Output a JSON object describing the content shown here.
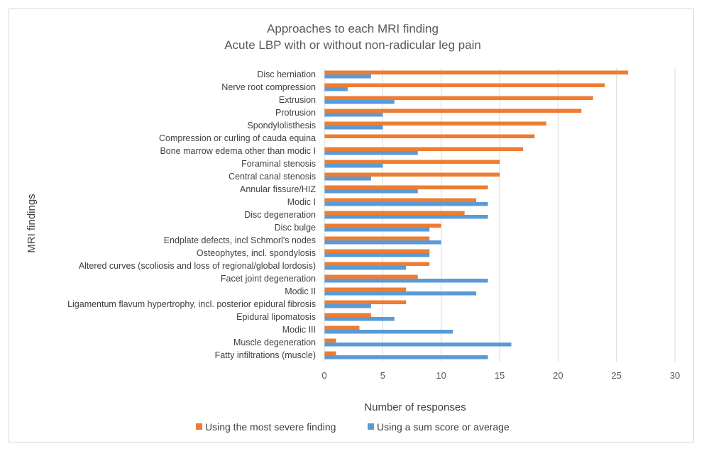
{
  "chart_data": {
    "type": "bar",
    "orientation": "horizontal",
    "title": [
      "Approaches to each MRI finding",
      "Acute LBP with or without non-radicular leg pain"
    ],
    "xlabel": "Number of responses",
    "ylabel": "MRI findings",
    "xlim": [
      0,
      30
    ],
    "xticks": [
      "0",
      "5",
      "10",
      "15",
      "20",
      "25",
      "30"
    ],
    "grid": true,
    "legend_position": "bottom",
    "categories": [
      "Disc herniation",
      "Nerve root compression",
      "Extrusion",
      "Protrusion",
      "Spondylolisthesis",
      "Compression or curling of cauda equina",
      "Bone marrow edema other than modic I",
      "Foraminal stenosis",
      "Central canal stenosis",
      "Annular fissure/HIZ",
      "Modic I",
      "Disc degeneration",
      "Disc bulge",
      "Endplate defects, incl Schmorl's nodes",
      "Osteophytes, incl. spondylosis",
      "Altered curves (scoliosis and loss of regional/global lordosis)",
      "Facet joint degeneration",
      "Modic II",
      "Ligamentum flavum hypertrophy, incl. posterior epidural fibrosis",
      "Epidural lipomatosis",
      "Modic III",
      "Muscle degeneration",
      "Fatty infiltrations (muscle)"
    ],
    "series": [
      {
        "name": "Using the most severe finding",
        "color": "#ED7D31",
        "values": [
          26,
          24,
          23,
          22,
          19,
          18,
          17,
          15,
          15,
          14,
          13,
          12,
          10,
          9,
          9,
          9,
          8,
          7,
          7,
          4,
          3,
          1,
          1
        ]
      },
      {
        "name": "Using a sum score or average",
        "color": "#5B9BD5",
        "values": [
          4,
          2,
          6,
          5,
          5,
          0,
          8,
          5,
          4,
          8,
          14,
          14,
          9,
          10,
          9,
          7,
          14,
          13,
          4,
          6,
          11,
          16,
          14
        ]
      }
    ]
  }
}
